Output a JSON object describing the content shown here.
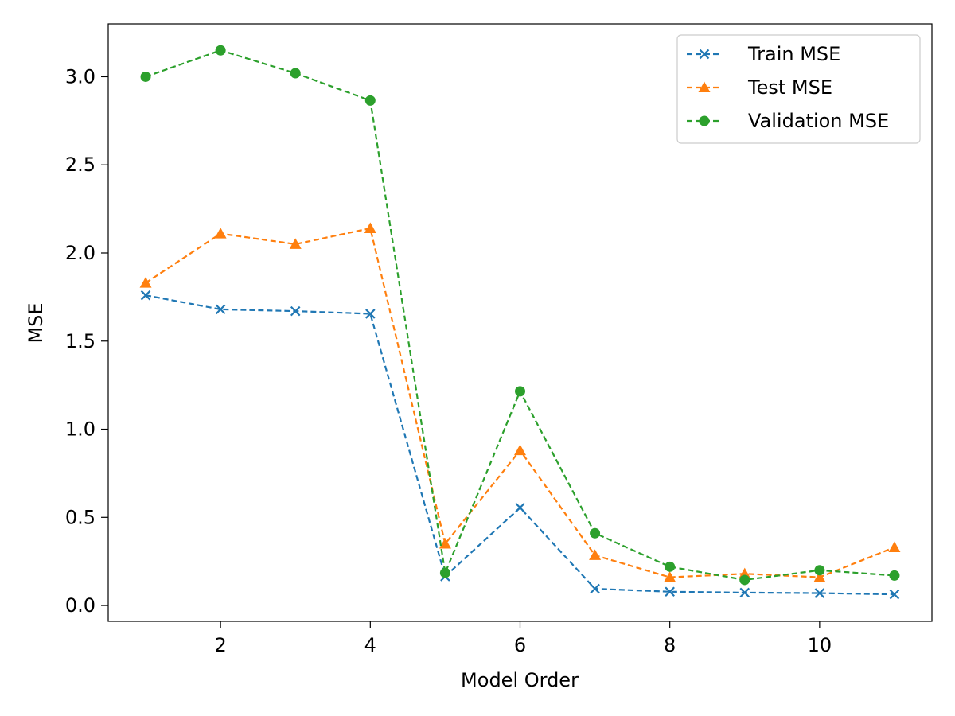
{
  "chart_data": {
    "type": "line",
    "title": "",
    "xlabel": "Model Order",
    "ylabel": "MSE",
    "x": [
      1,
      2,
      3,
      4,
      5,
      6,
      7,
      8,
      9,
      10,
      11
    ],
    "xlim": [
      0.5,
      11.5
    ],
    "ylim": [
      -0.09,
      3.3
    ],
    "xticks": [
      2,
      4,
      6,
      8,
      10
    ],
    "xtick_labels": [
      "2",
      "4",
      "6",
      "8",
      "10"
    ],
    "yticks": [
      0.0,
      0.5,
      1.0,
      1.5,
      2.0,
      2.5,
      3.0
    ],
    "ytick_labels": [
      "0.0",
      "0.5",
      "1.0",
      "1.5",
      "2.0",
      "2.5",
      "3.0"
    ],
    "grid": false,
    "legend_position": "top-right",
    "series": [
      {
        "name": "Train MSE",
        "color": "#1f77b4",
        "marker": "x",
        "linestyle": "dashed",
        "values": [
          1.76,
          1.68,
          1.67,
          1.655,
          0.165,
          0.555,
          0.095,
          0.078,
          0.073,
          0.07,
          0.063
        ]
      },
      {
        "name": "Test MSE",
        "color": "#ff7f0e",
        "marker": "triangle",
        "linestyle": "dashed",
        "values": [
          1.83,
          2.11,
          2.05,
          2.14,
          0.35,
          0.88,
          0.285,
          0.16,
          0.18,
          0.16,
          0.33
        ]
      },
      {
        "name": "Validation MSE",
        "color": "#2ca02c",
        "marker": "circle",
        "linestyle": "dashed",
        "values": [
          3.0,
          3.15,
          3.02,
          2.865,
          0.185,
          1.215,
          0.41,
          0.22,
          0.145,
          0.2,
          0.17
        ]
      }
    ]
  }
}
